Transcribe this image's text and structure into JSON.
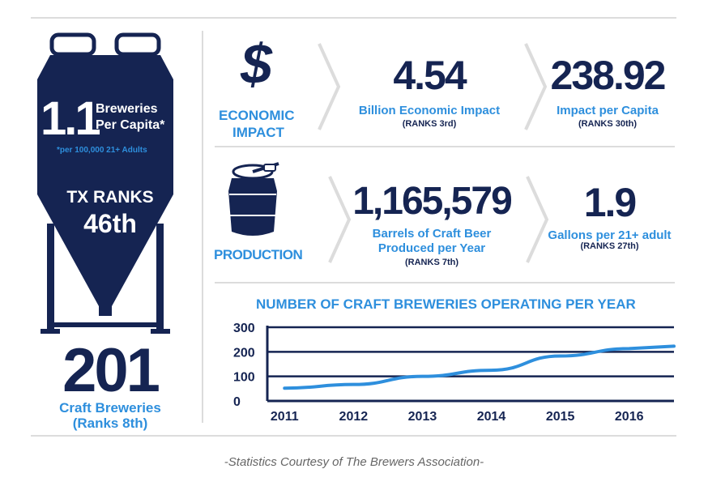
{
  "left": {
    "per_capita_value": "1.1",
    "per_capita_label_1": "Breweries",
    "per_capita_label_2": "Per Capita*",
    "per_capita_note": "*per 100,000 21+ Adults",
    "tx_ranks_label": "TX RANKS",
    "tx_rank_value": "46th",
    "breweries_count": "201",
    "breweries_label": "Craft Breweries",
    "breweries_rank": "(Ranks 8th)"
  },
  "economic": {
    "icon_glyph": "$",
    "label_1": "ECONOMIC",
    "label_2": "IMPACT",
    "stat1_value": "4.54",
    "stat1_label": "Billion Economic Impact",
    "stat1_rank": "(RANKS 3rd)",
    "stat2_value": "238.92",
    "stat2_label": "Impact per Capita",
    "stat2_rank": "(RANKS 30th)"
  },
  "production": {
    "label": "PRODUCTION",
    "stat1_value": "1,165,579",
    "stat1_label_1": "Barrels of Craft Beer",
    "stat1_label_2": "Produced per Year",
    "stat1_rank": "(RANKS 7th)",
    "stat2_value": "1.9",
    "stat2_label": "Gallons per 21+ adult",
    "stat2_rank": "(RANKS  27th)"
  },
  "footer": "-Statistics Courtesy of The Brewers Association-",
  "colors": {
    "navy": "#152452",
    "blue": "#2e8fdd",
    "rule": "#dcdcdc"
  },
  "chart_data": {
    "type": "line",
    "title": "NUMBER OF CRAFT BREWERIES OPERATING PER YEAR",
    "x": [
      2011,
      2012,
      2013,
      2014,
      2015,
      2016
    ],
    "series": [
      {
        "values": [
          52,
          67,
          100,
          125,
          183,
          213
        ]
      }
    ],
    "xlim": [
      2010.75,
      2016.65
    ],
    "ylim": [
      0,
      300
    ],
    "yticks": [
      0,
      100,
      200,
      300
    ],
    "grid": true,
    "line_color": "#2e8fdd"
  }
}
